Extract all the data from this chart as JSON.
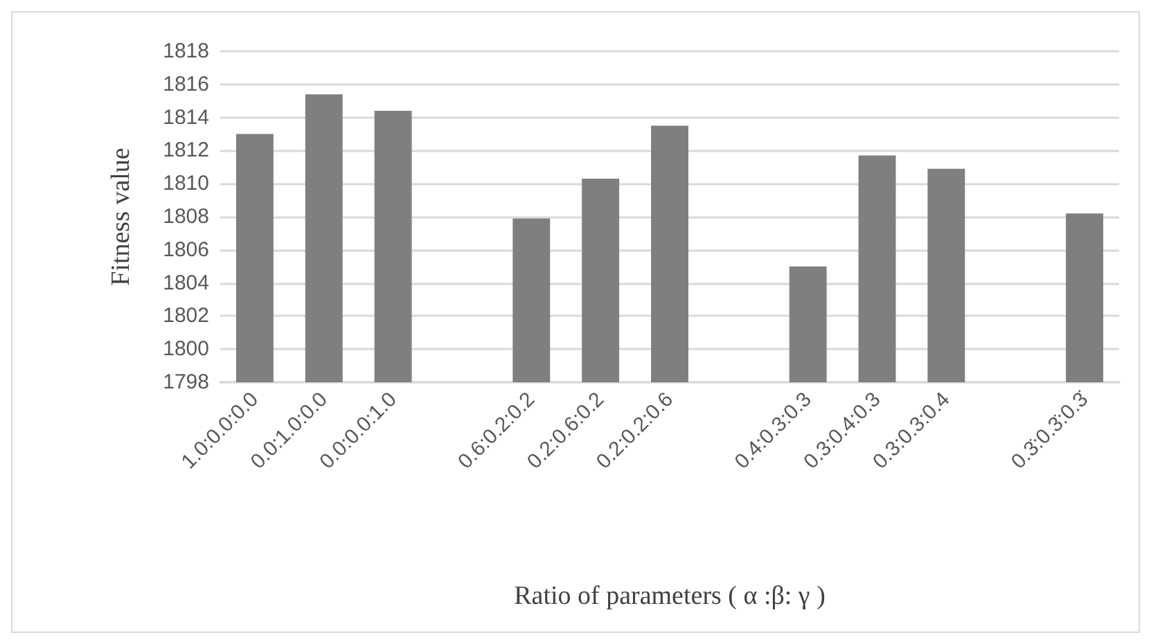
{
  "chart_data": {
    "type": "bar",
    "xlabel": "Ratio of parameters ( α :β: γ )",
    "ylabel": "Fitness value",
    "categories": [
      "1.0:0.0:0.0",
      "0.0:1.0:0.0",
      "0.0:0.0:1.0",
      null,
      "0.6:0.2:0.2",
      "0.2:0.6:0.2",
      "0.2:0.2:0.6",
      null,
      "0.4:0.3:0.3",
      "0.3:0.4:0.3",
      "0.3:0.3:0.4",
      null,
      "0.3̇:0.3̇:0.3̇"
    ],
    "values": [
      1813.0,
      1815.4,
      1814.4,
      null,
      1807.9,
      1810.3,
      1813.5,
      null,
      1805.0,
      1811.7,
      1810.9,
      null,
      1808.2
    ],
    "color": "#7f7f7f",
    "ylim": [
      1798,
      1818
    ],
    "yticks": [
      1798,
      1800,
      1802,
      1804,
      1806,
      1808,
      1810,
      1812,
      1814,
      1816,
      1818
    ],
    "grid": "y"
  }
}
